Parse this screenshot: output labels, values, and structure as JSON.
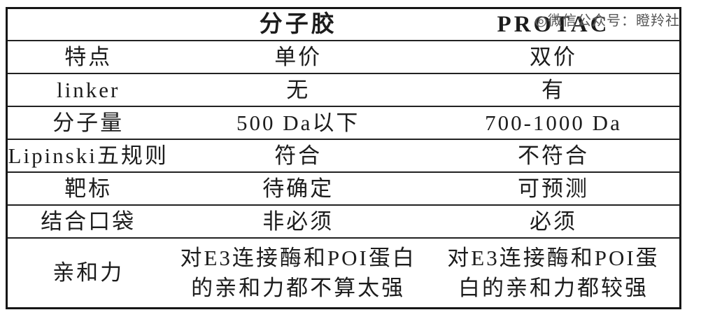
{
  "watermark": "◎微信公众号：瞪羚社",
  "table": {
    "header": {
      "label": "",
      "glue": "分子胶",
      "protac": "PROTAC"
    },
    "rows": [
      {
        "label": "特点",
        "glue": "单价",
        "protac": "双价"
      },
      {
        "label": "linker",
        "glue": "无",
        "protac": "有"
      },
      {
        "label": "分子量",
        "glue": "500 Da以下",
        "protac": "700-1000 Da"
      },
      {
        "label": "Lipinski五规则",
        "glue": "符合",
        "protac": "不符合"
      },
      {
        "label": "靶标",
        "glue": "待确定",
        "protac": "可预测"
      },
      {
        "label": "结合口袋",
        "glue": "非必须",
        "protac": "必须"
      },
      {
        "label": "亲和力",
        "glue": "对E3连接酶和POI蛋白\n的亲和力都不算太强",
        "protac": "对E3连接酶和POI蛋\n白的亲和力都较强"
      }
    ]
  },
  "colors": {
    "background": "#ffffff",
    "border": "#161616",
    "text": "#1c1c1c",
    "watermark": "#4a4a4a"
  }
}
